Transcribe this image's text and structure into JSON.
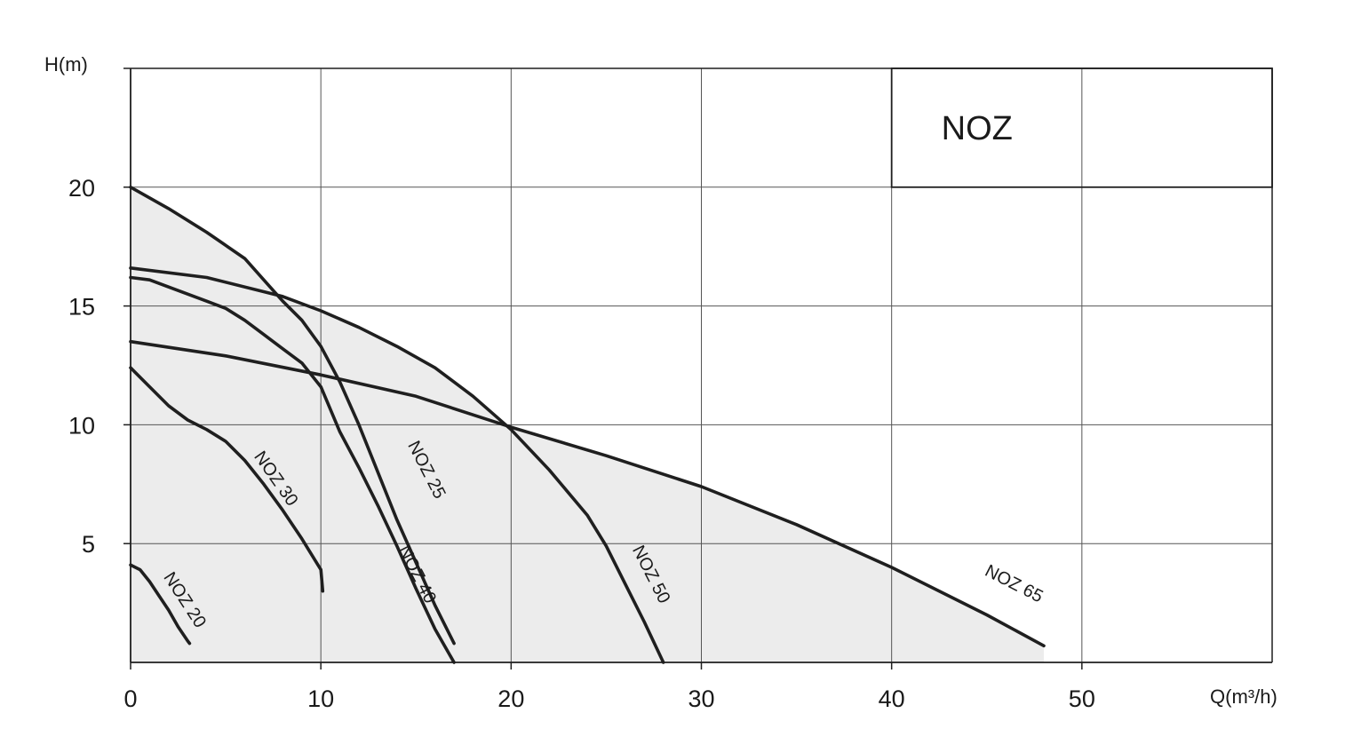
{
  "chart_data": {
    "type": "line",
    "title": "NOZ",
    "xlabel": "Q(m³/h)",
    "ylabel": "H(m)",
    "xlim": [
      0,
      60
    ],
    "ylim": [
      0,
      25
    ],
    "x_ticks": [
      0,
      10,
      20,
      30,
      40,
      50
    ],
    "y_ticks": [
      5,
      10,
      15,
      20
    ],
    "grid": true,
    "colors": {
      "line": "#1f1f1f",
      "fill": "#ececec",
      "grid": "#555555"
    },
    "series": [
      {
        "name": "NOZ 20",
        "points": [
          [
            0,
            4.1
          ],
          [
            0.5,
            3.9
          ],
          [
            1,
            3.4
          ],
          [
            1.5,
            2.8
          ],
          [
            2,
            2.2
          ],
          [
            2.5,
            1.5
          ],
          [
            3,
            0.9
          ],
          [
            3.1,
            0.8
          ]
        ]
      },
      {
        "name": "NOZ 30",
        "points": [
          [
            0,
            12.4
          ],
          [
            1,
            11.6
          ],
          [
            2,
            10.8
          ],
          [
            3,
            10.2
          ],
          [
            4,
            9.8
          ],
          [
            5,
            9.3
          ],
          [
            6,
            8.5
          ],
          [
            7,
            7.5
          ],
          [
            8,
            6.4
          ],
          [
            9,
            5.2
          ],
          [
            10,
            3.9
          ],
          [
            10.1,
            3.0
          ]
        ]
      },
      {
        "name": "NOZ 40",
        "points": [
          [
            0,
            16.2
          ],
          [
            1,
            16.1
          ],
          [
            2,
            15.8
          ],
          [
            4,
            15.2
          ],
          [
            5,
            14.9
          ],
          [
            6,
            14.4
          ],
          [
            7,
            13.8
          ],
          [
            8,
            13.2
          ],
          [
            9,
            12.6
          ],
          [
            10,
            11.6
          ],
          [
            11,
            9.7
          ],
          [
            12,
            8.2
          ],
          [
            13,
            6.6
          ],
          [
            14,
            4.9
          ],
          [
            15,
            3.1
          ],
          [
            16,
            1.4
          ],
          [
            17,
            0
          ]
        ]
      },
      {
        "name": "NOZ 25",
        "points": [
          [
            0,
            20.0
          ],
          [
            2,
            19.1
          ],
          [
            4,
            18.1
          ],
          [
            6,
            17.0
          ],
          [
            7,
            16.1
          ],
          [
            8,
            15.2
          ],
          [
            9,
            14.4
          ],
          [
            10,
            13.3
          ],
          [
            11,
            11.8
          ],
          [
            12,
            10.0
          ],
          [
            13,
            8.0
          ],
          [
            14,
            6.0
          ],
          [
            15,
            4.2
          ],
          [
            16,
            2.4
          ],
          [
            17,
            0.8
          ]
        ]
      },
      {
        "name": "NOZ 50",
        "points": [
          [
            0,
            16.6
          ],
          [
            4,
            16.2
          ],
          [
            8,
            15.4
          ],
          [
            10,
            14.8
          ],
          [
            12,
            14.1
          ],
          [
            14,
            13.3
          ],
          [
            16,
            12.4
          ],
          [
            18,
            11.2
          ],
          [
            20,
            9.8
          ],
          [
            22,
            8.1
          ],
          [
            24,
            6.2
          ],
          [
            25,
            4.9
          ],
          [
            26,
            3.3
          ],
          [
            27,
            1.7
          ],
          [
            28,
            0
          ]
        ]
      },
      {
        "name": "NOZ 65",
        "points": [
          [
            0,
            13.5
          ],
          [
            5,
            12.9
          ],
          [
            10,
            12.1
          ],
          [
            15,
            11.2
          ],
          [
            20,
            9.9
          ],
          [
            25,
            8.7
          ],
          [
            30,
            7.4
          ],
          [
            35,
            5.8
          ],
          [
            40,
            4.0
          ],
          [
            45,
            2.0
          ],
          [
            48,
            0.7
          ]
        ]
      }
    ]
  }
}
